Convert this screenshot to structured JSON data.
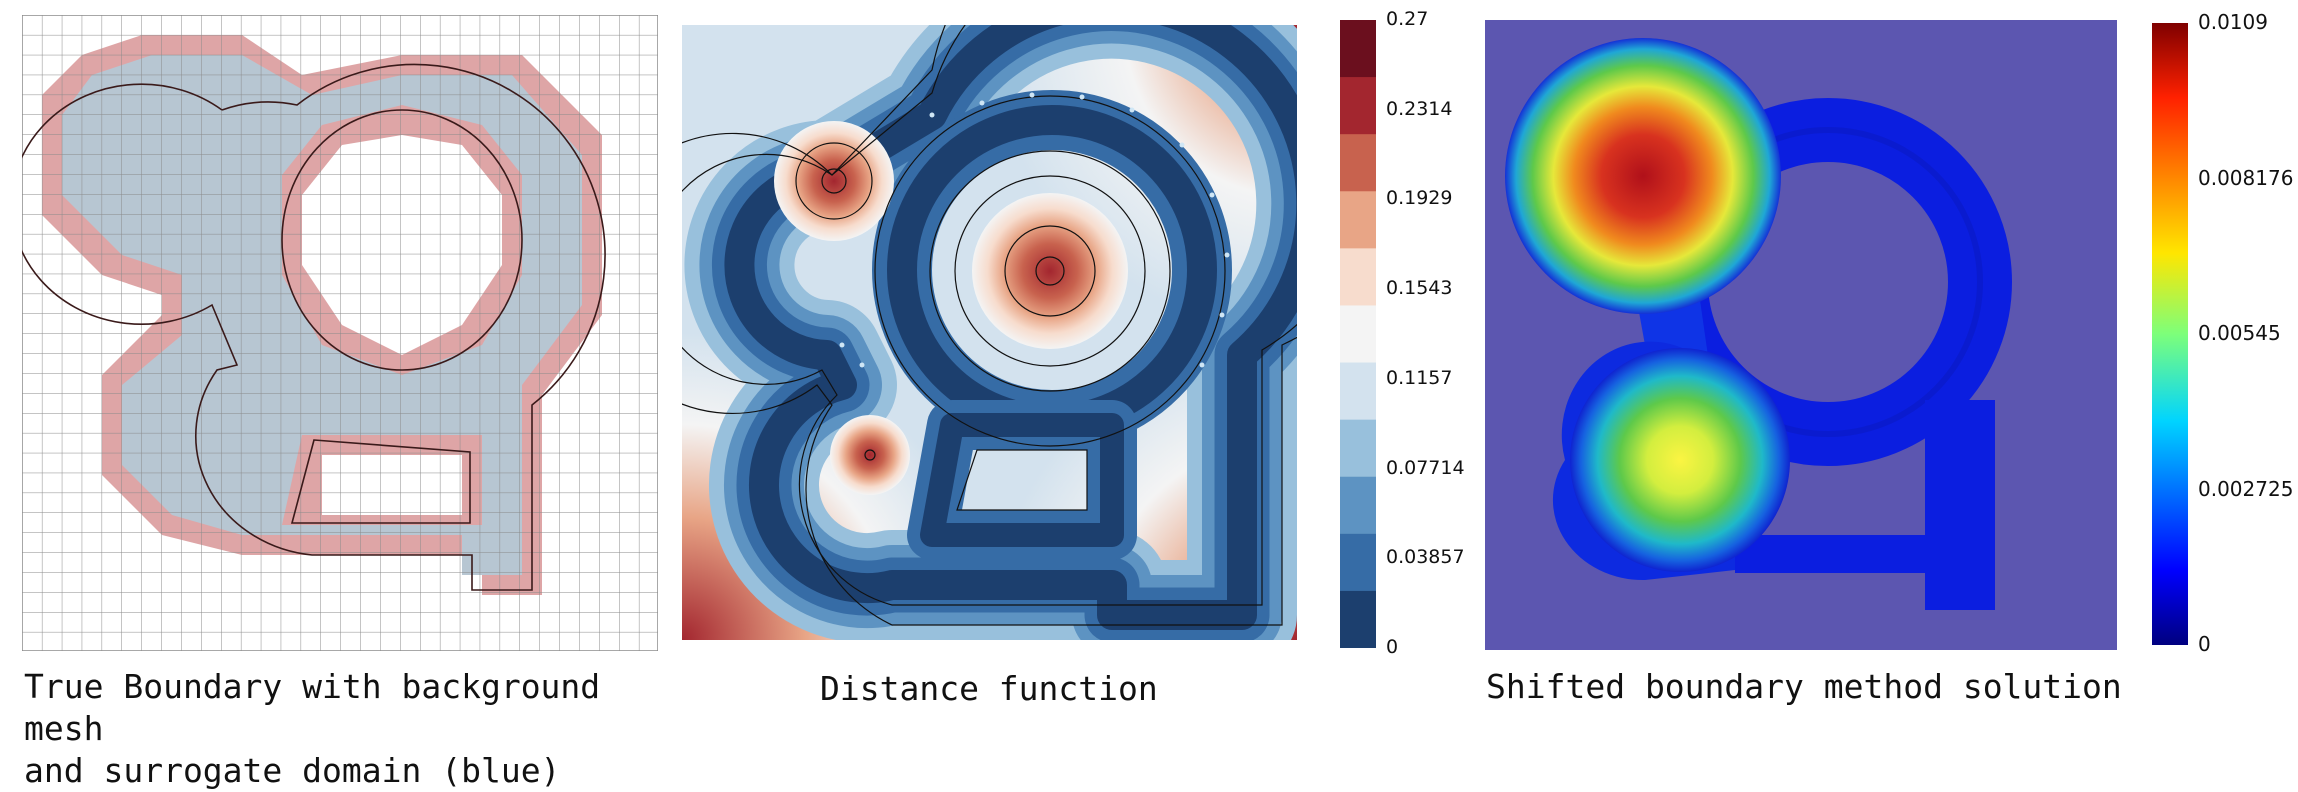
{
  "panels": [
    {
      "caption": "True Boundary with background mesh\nand surrogate domain (blue)"
    },
    {
      "caption": "Distance function"
    },
    {
      "caption": "Shifted boundary method solution"
    }
  ],
  "colorbar_distance": {
    "ticks": [
      "0.27",
      "0.2314",
      "0.1929",
      "0.1543",
      "0.1157",
      "0.07714",
      "0.03857",
      "0"
    ],
    "colors": [
      "#6b0f1e",
      "#a3262f",
      "#c8624e",
      "#e8a586",
      "#f7dccd",
      "#f4f4f4",
      "#d3e2ee",
      "#98c0dc",
      "#5d93c2",
      "#366ca6",
      "#1c3f6e"
    ]
  },
  "colorbar_solution": {
    "ticks": [
      "0.0109",
      "0.008176",
      "0.00545",
      "0.002725",
      "0"
    ],
    "colormap": "jet"
  },
  "colors": {
    "surrogate_domain": "#b7c6d2",
    "boundary_band": "#dea5a6",
    "background_field": "#5c56b0"
  }
}
